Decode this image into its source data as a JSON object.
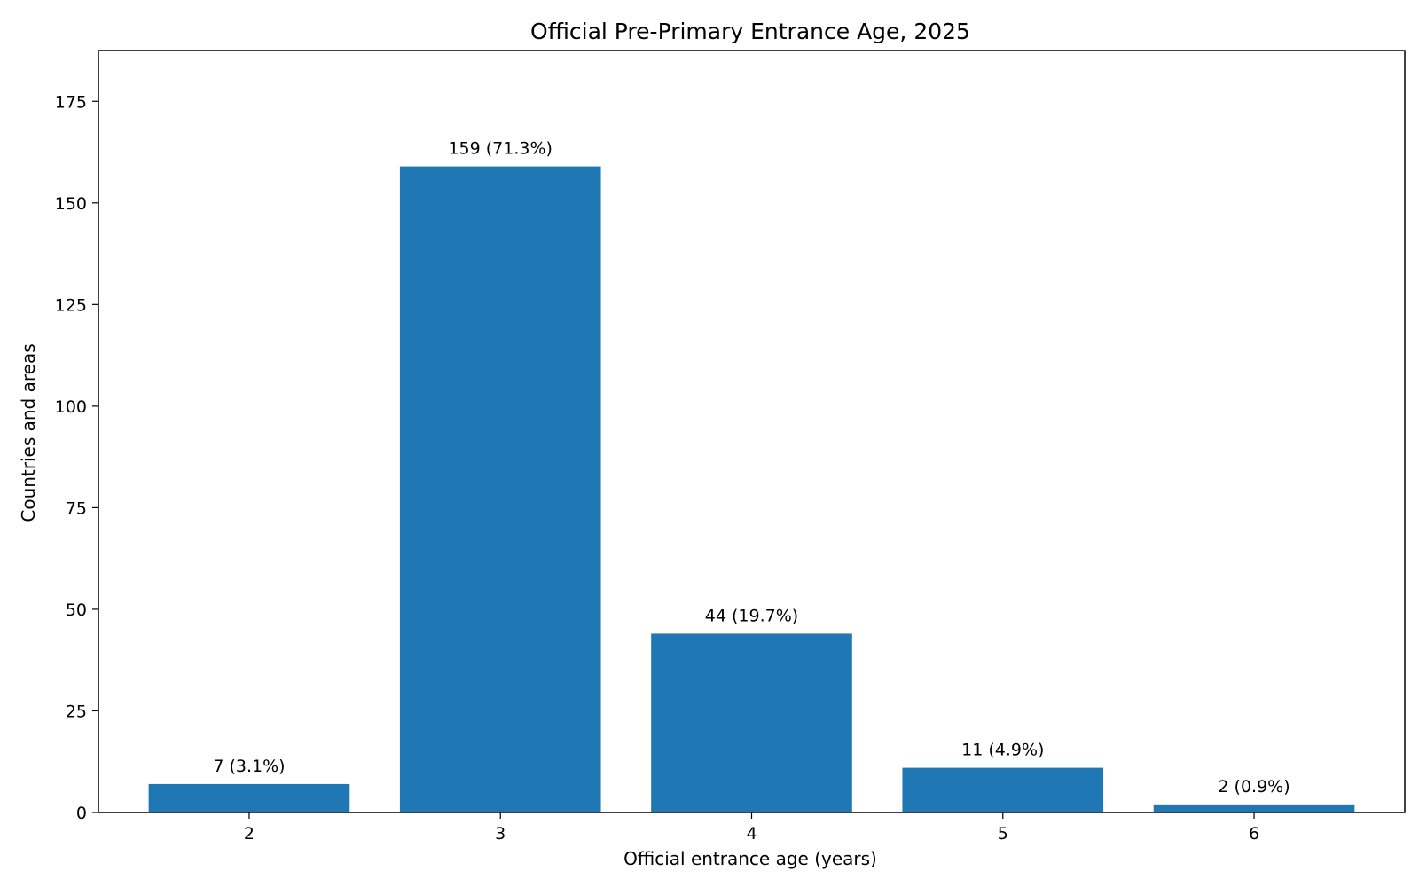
{
  "chart_data": {
    "type": "bar",
    "title": "Official Pre-Primary Entrance Age, 2025",
    "xlabel": "Official entrance age (years)",
    "ylabel": "Countries and areas",
    "categories": [
      "2",
      "3",
      "4",
      "5",
      "6"
    ],
    "values": [
      7,
      159,
      44,
      11,
      2
    ],
    "data_labels": [
      "7 (3.1%)",
      "159 (71.3%)",
      "44 (19.7%)",
      "11 (4.9%)",
      "2 (0.9%)"
    ],
    "ylim": [
      0,
      187.5
    ],
    "yticks": [
      0,
      25,
      50,
      75,
      100,
      125,
      150,
      175
    ],
    "grid": false,
    "legend": "none",
    "bar_color": "#1f77b4"
  }
}
